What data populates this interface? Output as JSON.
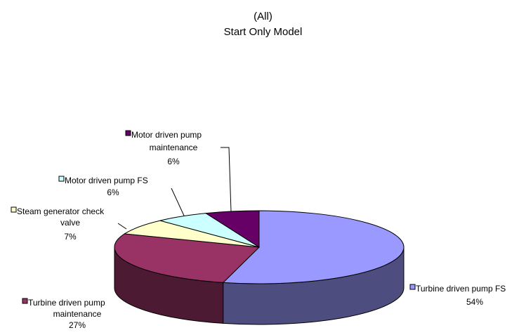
{
  "chart_data": {
    "type": "pie",
    "style": "3d",
    "title": "(All)",
    "subtitle": "Start Only Model",
    "legend": "none",
    "slices": [
      {
        "label": "Turbine driven pump FS",
        "value": 54,
        "pct_label": "54%",
        "color": "#9999ff",
        "side_color": "#4d4d80"
      },
      {
        "label": "Turbine driven pump maintenance",
        "value": 27,
        "pct_label": "27%",
        "color": "#993366",
        "side_color": "#4d1a33"
      },
      {
        "label": "Steam generator check valve",
        "value": 7,
        "pct_label": "7%",
        "color": "#ffffcc",
        "side_color": "#808066"
      },
      {
        "label": "Motor driven pump FS",
        "value": 6,
        "pct_label": "6%",
        "color": "#ccffff",
        "side_color": "#668080"
      },
      {
        "label": "Motor driven pump maintenance",
        "value": 6,
        "pct_label": "6%",
        "color": "#660066",
        "side_color": "#330033"
      }
    ]
  }
}
